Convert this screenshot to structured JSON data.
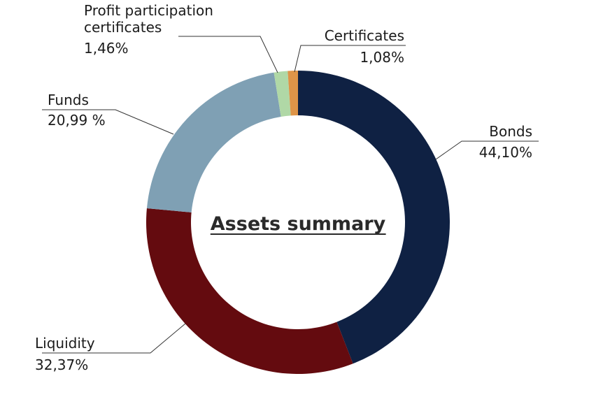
{
  "chart_data": {
    "type": "pie",
    "title": "Assets summary",
    "slices": [
      {
        "name": "Bonds",
        "value": 44.1,
        "label": "44,10%",
        "color": "#0f2143"
      },
      {
        "name": "Liquidity",
        "value": 32.37,
        "label": "32,37%",
        "color": "#640b0f"
      },
      {
        "name": "Funds",
        "value": 20.99,
        "label": "20,99 %",
        "color": "#7fa0b4"
      },
      {
        "name_lines": [
          "Profit participation",
          "certificates"
        ],
        "value": 1.46,
        "label": "1,46%",
        "color": "#b0d8a6"
      },
      {
        "name": "Certificates",
        "value": 1.08,
        "label": "1,08%",
        "color": "#de9448"
      }
    ]
  }
}
